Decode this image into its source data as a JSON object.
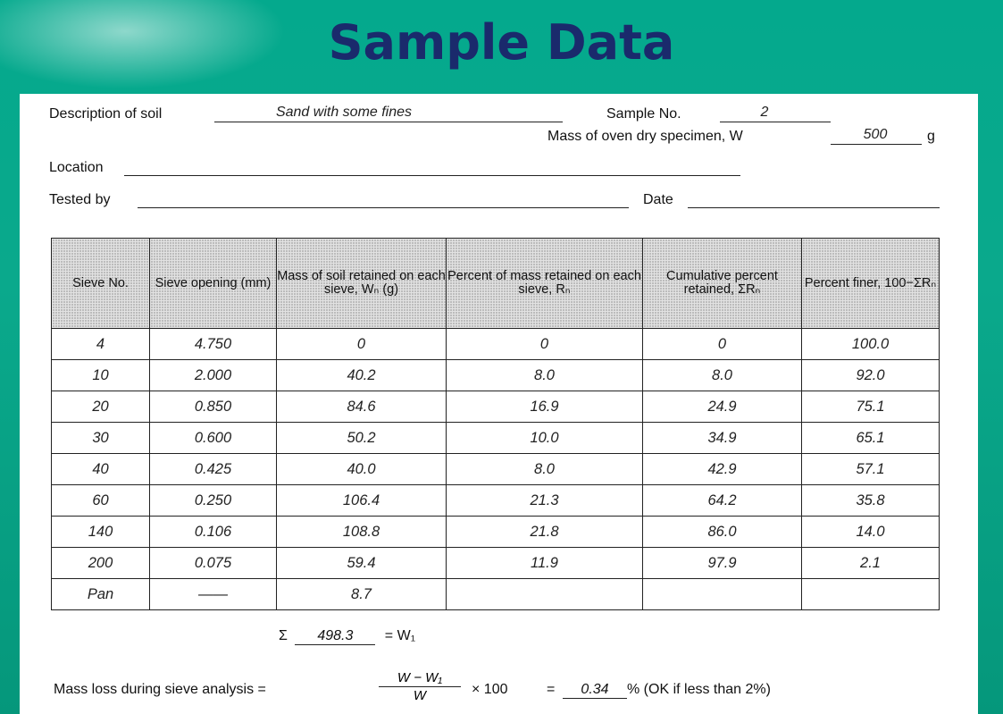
{
  "slide": {
    "title": "Sample Data"
  },
  "form": {
    "description_label": "Description of soil",
    "description_value": "Sand with some fines",
    "sample_label": "Sample No.",
    "sample_value": "2",
    "mass_label": "Mass of oven dry specimen, W",
    "mass_value": "500",
    "mass_unit": "g",
    "location_label": "Location",
    "tested_by_label": "Tested by",
    "date_label": "Date"
  },
  "table": {
    "headers": [
      "Sieve No.",
      "Sieve opening (mm)",
      "Mass of soil retained on each sieve, Wₙ (g)",
      "Percent of mass retained on each sieve, Rₙ",
      "Cumulative percent retained, ΣRₙ",
      "Percent finer, 100−ΣRₙ"
    ],
    "rows": [
      [
        "4",
        "4.750",
        "0",
        "0",
        "0",
        "100.0"
      ],
      [
        "10",
        "2.000",
        "40.2",
        "8.0",
        "8.0",
        "92.0"
      ],
      [
        "20",
        "0.850",
        "84.6",
        "16.9",
        "24.9",
        "75.1"
      ],
      [
        "30",
        "0.600",
        "50.2",
        "10.0",
        "34.9",
        "65.1"
      ],
      [
        "40",
        "0.425",
        "40.0",
        "8.0",
        "42.9",
        "57.1"
      ],
      [
        "60",
        "0.250",
        "106.4",
        "21.3",
        "64.2",
        "35.8"
      ],
      [
        "140",
        "0.106",
        "108.8",
        "21.8",
        "86.0",
        "14.0"
      ],
      [
        "200",
        "0.075",
        "59.4",
        "11.9",
        "97.9",
        "2.1"
      ],
      [
        "Pan",
        "——",
        "8.7",
        "",
        "",
        ""
      ]
    ]
  },
  "summary": {
    "sigma": "Σ",
    "sum_value": "498.3",
    "sum_equals": "= W₁",
    "mass_loss_label": "Mass loss during sieve analysis =",
    "fraction_numerator": "W − W₁",
    "fraction_denominator": "W",
    "times": "× 100",
    "equals": "=",
    "loss_value": "0.34",
    "loss_suffix": "% (OK if less than 2%)"
  }
}
